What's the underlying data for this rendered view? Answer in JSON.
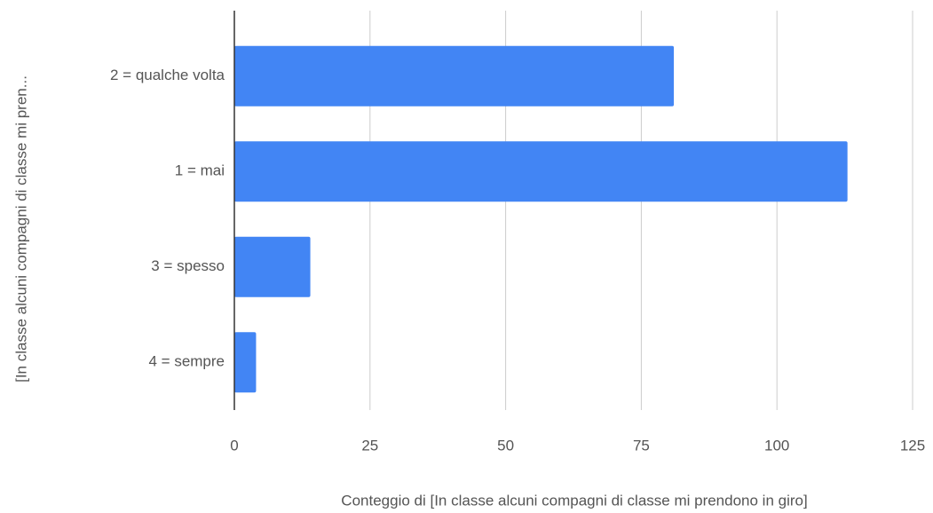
{
  "chart_data": {
    "type": "bar",
    "orientation": "horizontal",
    "x_label": "Conteggio di  [In classe alcuni compagni di classe mi prendono in giro]",
    "y_label": "[In classe alcuni compagni di classe mi pren...",
    "categories": [
      "2 = qualche volta",
      "1 = mai",
      "3 = spesso",
      "4 = sempre"
    ],
    "values": [
      81,
      113,
      14,
      4
    ],
    "color": "#4285f4",
    "xlim": [
      0,
      125
    ],
    "xticks": [
      0,
      25,
      50,
      75,
      100,
      125
    ],
    "grid": true
  }
}
